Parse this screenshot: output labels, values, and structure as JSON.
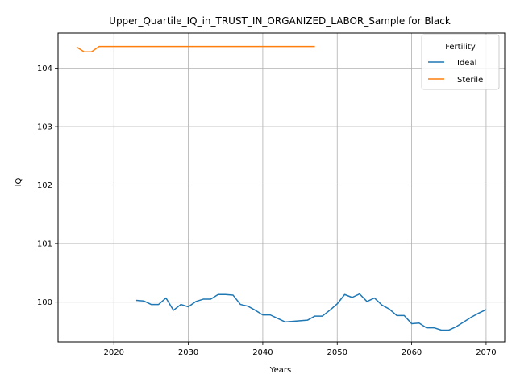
{
  "chart_data": {
    "type": "line",
    "title": "Upper_Quartile_IQ_in_TRUST_IN_ORGANIZED_LABOR_Sample for Black",
    "xlabel": "Years",
    "ylabel": "IQ",
    "xlim": [
      2012.5,
      2072.5
    ],
    "ylim": [
      99.32,
      104.6
    ],
    "xticks": [
      2020,
      2030,
      2040,
      2050,
      2060,
      2070
    ],
    "yticks": [
      100,
      101,
      102,
      103,
      104
    ],
    "grid": true,
    "legend": {
      "title": "Fertility",
      "placement": "top-right"
    },
    "series": [
      {
        "name": "Ideal",
        "color": "#1f77b4",
        "x": [
          2023,
          2024,
          2025,
          2026,
          2027,
          2028,
          2029,
          2030,
          2031,
          2032,
          2033,
          2034,
          2035,
          2036,
          2037,
          2038,
          2039,
          2040,
          2041,
          2042,
          2043,
          2044,
          2045,
          2046,
          2047,
          2048,
          2049,
          2050,
          2051,
          2052,
          2053,
          2054,
          2055,
          2056,
          2057,
          2058,
          2059,
          2060,
          2061,
          2062,
          2063,
          2064,
          2065,
          2066,
          2067,
          2068,
          2069,
          2070
        ],
        "y": [
          100.03,
          100.02,
          99.96,
          99.96,
          100.07,
          99.86,
          99.96,
          99.92,
          100.01,
          100.05,
          100.05,
          100.13,
          100.13,
          100.12,
          99.96,
          99.93,
          99.86,
          99.78,
          99.78,
          99.72,
          99.66,
          99.67,
          99.68,
          99.69,
          99.76,
          99.76,
          99.86,
          99.97,
          100.13,
          100.08,
          100.14,
          100.01,
          100.07,
          99.95,
          99.88,
          99.77,
          99.77,
          99.63,
          99.64,
          99.56,
          99.56,
          99.52,
          99.52,
          99.58,
          99.66,
          99.74,
          99.81,
          99.87
        ]
      },
      {
        "name": "Sterile",
        "color": "#ff7f0e",
        "x": [
          2015,
          2016,
          2017,
          2018,
          2019,
          2020,
          2021,
          2022,
          2023,
          2024,
          2025,
          2026,
          2027,
          2028,
          2029,
          2030,
          2031,
          2032,
          2033,
          2034,
          2035,
          2036,
          2037,
          2038,
          2039,
          2040,
          2041,
          2042,
          2043,
          2044,
          2045,
          2046,
          2047
        ],
        "y": [
          104.36,
          104.28,
          104.28,
          104.37,
          104.37,
          104.37,
          104.37,
          104.37,
          104.37,
          104.37,
          104.37,
          104.37,
          104.37,
          104.37,
          104.37,
          104.37,
          104.37,
          104.37,
          104.37,
          104.37,
          104.37,
          104.37,
          104.37,
          104.37,
          104.37,
          104.37,
          104.37,
          104.37,
          104.37,
          104.37,
          104.37,
          104.37,
          104.37
        ]
      }
    ]
  }
}
